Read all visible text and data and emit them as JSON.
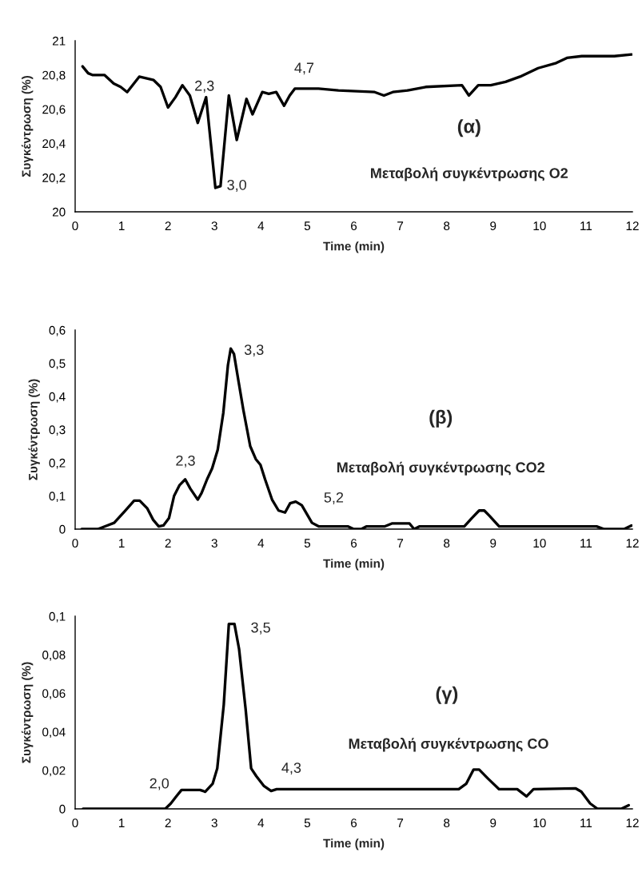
{
  "chart_data": [
    {
      "type": "line",
      "title": "Μεταβολή συγκέντρωσης O2",
      "subtitle": "(α)",
      "xlabel": "Time (min)",
      "ylabel": "Συγκέντρωση (%)",
      "grid": false,
      "xlim": [
        0,
        12
      ],
      "xticks": [
        0,
        1,
        2,
        3,
        4,
        5,
        6,
        7,
        8,
        9,
        10,
        11,
        12
      ],
      "ylim": [
        20,
        21
      ],
      "yticks": [
        {
          "value": 20,
          "label": "20"
        },
        {
          "value": 20.2,
          "label": "20,2"
        },
        {
          "value": 20.4,
          "label": "20,4"
        },
        {
          "value": 20.6,
          "label": "20,6"
        },
        {
          "value": 20.8,
          "label": "20,8"
        },
        {
          "value": 21,
          "label": "21"
        }
      ],
      "series": [
        {
          "color": "#000000",
          "x": [
            0.16,
            0.28,
            0.37,
            0.63,
            0.83,
            0.98,
            1.12,
            1.38,
            1.69,
            1.84,
            2.0,
            2.16,
            2.31,
            2.47,
            2.64,
            2.82,
            3.02,
            3.13,
            3.31,
            3.48,
            3.69,
            3.82,
            4.03,
            4.17,
            4.33,
            4.5,
            4.62,
            4.73,
            5.24,
            5.67,
            6.45,
            6.65,
            6.84,
            7.16,
            7.55,
            8.33,
            8.48,
            8.68,
            8.95,
            9.27,
            9.58,
            9.97,
            10.36,
            10.59,
            10.91,
            11.61,
            11.98
          ],
          "values": [
            20.85,
            20.81,
            20.8,
            20.8,
            20.75,
            20.73,
            20.7,
            20.79,
            20.77,
            20.73,
            20.61,
            20.67,
            20.74,
            20.68,
            20.52,
            20.67,
            20.14,
            20.15,
            20.68,
            20.42,
            20.66,
            20.57,
            20.7,
            20.69,
            20.7,
            20.62,
            20.68,
            20.72,
            20.72,
            20.71,
            20.7,
            20.68,
            20.7,
            20.71,
            20.73,
            20.74,
            20.68,
            20.74,
            20.74,
            20.76,
            20.79,
            20.84,
            20.87,
            20.9,
            20.91,
            20.91,
            20.92
          ]
        }
      ],
      "annotations": [
        "2,3",
        "3,0",
        "4,7"
      ]
    },
    {
      "type": "line",
      "title": "Μεταβολή συγκέντρωσης CO2",
      "subtitle": "(β)",
      "xlabel": "Time (min)",
      "ylabel": "Συγκέντρωση (%)",
      "grid": false,
      "xlim": [
        0,
        12
      ],
      "xticks": [
        0,
        1,
        2,
        3,
        4,
        5,
        6,
        7,
        8,
        9,
        10,
        11,
        12
      ],
      "ylim": [
        0,
        0.6
      ],
      "yticks": [
        {
          "value": 0,
          "label": "0"
        },
        {
          "value": 0.1,
          "label": "0,1"
        },
        {
          "value": 0.2,
          "label": "0,2"
        },
        {
          "value": 0.3,
          "label": "0,3"
        },
        {
          "value": 0.4,
          "label": "0,4"
        },
        {
          "value": 0.5,
          "label": "0,5"
        },
        {
          "value": 0.6,
          "label": "0,6"
        }
      ],
      "series": [
        {
          "color": "#000000",
          "x": [
            0.14,
            0.49,
            0.69,
            0.84,
            1.08,
            1.27,
            1.39,
            1.55,
            1.68,
            1.8,
            1.9,
            2.02,
            2.13,
            2.25,
            2.37,
            2.48,
            2.64,
            2.72,
            2.84,
            2.95,
            3.07,
            3.19,
            3.29,
            3.35,
            3.42,
            3.52,
            3.62,
            3.77,
            3.89,
            3.99,
            4.09,
            4.24,
            4.38,
            4.52,
            4.63,
            4.75,
            4.88,
            5.1,
            5.25,
            5.88,
            6.0,
            6.16,
            6.27,
            6.66,
            6.82,
            7.2,
            7.3,
            7.41,
            8.38,
            8.54,
            8.7,
            8.81,
            8.93,
            9.13,
            11.23,
            11.39,
            11.82,
            11.98
          ],
          "values": [
            0,
            0,
            0.011,
            0.019,
            0.056,
            0.086,
            0.086,
            0.063,
            0.028,
            0.008,
            0.011,
            0.033,
            0.1,
            0.133,
            0.15,
            0.122,
            0.089,
            0.108,
            0.15,
            0.183,
            0.239,
            0.35,
            0.494,
            0.544,
            0.528,
            0.444,
            0.361,
            0.25,
            0.211,
            0.194,
            0.15,
            0.089,
            0.056,
            0.05,
            0.078,
            0.083,
            0.072,
            0.019,
            0.008,
            0.008,
            0,
            0,
            0.008,
            0.008,
            0.017,
            0.017,
            0,
            0.008,
            0.008,
            0.033,
            0.056,
            0.056,
            0.039,
            0.008,
            0.008,
            0,
            0,
            0.011
          ]
        }
      ],
      "annotations": [
        "3,3",
        "2,3",
        "5,2"
      ]
    },
    {
      "type": "line",
      "title": "Μεταβολή συγκέντρωσης CO",
      "subtitle": "(γ)",
      "xlabel": "Time (min)",
      "ylabel": "Συγκέντρωση (%)",
      "grid": false,
      "xlim": [
        0,
        12
      ],
      "xticks": [
        0,
        1,
        2,
        3,
        4,
        5,
        6,
        7,
        8,
        9,
        10,
        11,
        12
      ],
      "ylim": [
        0,
        0.1
      ],
      "yticks": [
        {
          "value": 0,
          "label": "0"
        },
        {
          "value": 0.02,
          "label": "0,02"
        },
        {
          "value": 0.04,
          "label": "0,04"
        },
        {
          "value": 0.06,
          "label": "0,06"
        },
        {
          "value": 0.08,
          "label": "0,08"
        },
        {
          "value": 0.1,
          "label": "0,1"
        }
      ],
      "series": [
        {
          "color": "#000000",
          "x": [
            0.17,
            1.94,
            2.06,
            2.18,
            2.29,
            2.69,
            2.8,
            2.96,
            3.06,
            3.2,
            3.31,
            3.43,
            3.53,
            3.67,
            3.79,
            3.9,
            4.06,
            4.22,
            4.34,
            8.26,
            8.42,
            8.58,
            8.7,
            8.89,
            9.13,
            9.52,
            9.72,
            9.87,
            10.78,
            10.9,
            11.09,
            11.25,
            11.76,
            11.92
          ],
          "values": [
            0,
            0,
            0.0028,
            0.0065,
            0.0098,
            0.0098,
            0.0089,
            0.013,
            0.021,
            0.054,
            0.096,
            0.096,
            0.083,
            0.052,
            0.021,
            0.017,
            0.012,
            0.0093,
            0.0102,
            0.0102,
            0.013,
            0.0204,
            0.0204,
            0.0157,
            0.0102,
            0.0102,
            0.0065,
            0.0102,
            0.0106,
            0.0089,
            0.0028,
            0,
            0,
            0.0019
          ]
        }
      ],
      "annotations": [
        "3,5",
        "2,0",
        "4,3"
      ]
    }
  ]
}
